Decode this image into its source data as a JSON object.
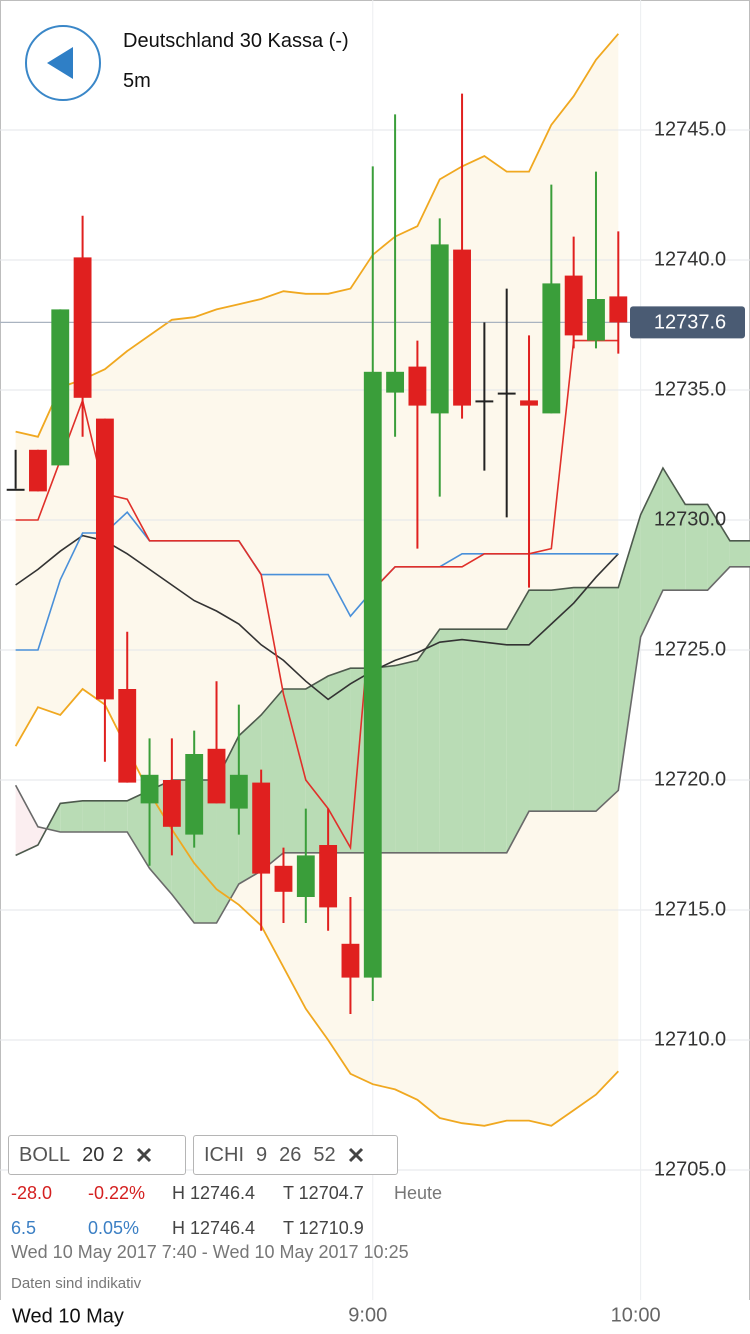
{
  "header": {
    "title": "Deutschland 30 Kassa (-)",
    "interval": "5m"
  },
  "chart_data": {
    "type": "candlestick",
    "x": [
      460,
      465,
      470,
      475,
      480,
      485,
      490,
      495,
      500,
      505,
      510,
      515,
      520,
      525,
      530,
      535,
      540,
      545,
      550,
      555,
      560,
      565,
      570,
      575,
      580,
      585,
      590,
      595
    ],
    "open": [
      12731.2,
      12732.7,
      12732.1,
      12740.1,
      12733.9,
      12723.5,
      12719.1,
      12720.0,
      12717.9,
      12721.2,
      12718.9,
      12719.9,
      12716.7,
      12715.5,
      12717.5,
      12713.7,
      12712.4,
      12734.9,
      12735.9,
      12734.1,
      12740.4,
      12734.6,
      12734.9,
      12734.6,
      12734.1,
      12739.4,
      12736.9,
      12738.6
    ],
    "high": [
      12732.7,
      12732.7,
      12738.1,
      12741.7,
      12733.9,
      12725.7,
      12721.6,
      12721.6,
      12721.9,
      12723.8,
      12722.9,
      12720.4,
      12717.4,
      12718.9,
      12718.9,
      12715.5,
      12743.6,
      12745.6,
      12736.9,
      12741.6,
      12746.4,
      12737.6,
      12738.9,
      12737.1,
      12742.9,
      12740.9,
      12743.4,
      12741.1
    ],
    "low": [
      12731.2,
      12731.1,
      12732.1,
      12733.2,
      12720.7,
      12719.9,
      12716.7,
      12717.1,
      12717.4,
      12719.1,
      12717.9,
      12714.2,
      12714.5,
      12714.5,
      12714.2,
      12711.0,
      12711.5,
      12733.2,
      12728.9,
      12730.9,
      12733.9,
      12731.9,
      12730.1,
      12727.4,
      12734.1,
      12736.6,
      12736.6,
      12736.4
    ],
    "close": [
      12731.2,
      12731.1,
      12738.1,
      12734.7,
      12723.1,
      12719.9,
      12720.2,
      12718.2,
      12721.0,
      12719.1,
      12720.2,
      12716.4,
      12715.7,
      12717.1,
      12715.1,
      12712.4,
      12735.7,
      12735.7,
      12734.4,
      12740.6,
      12734.4,
      12734.6,
      12734.9,
      12734.4,
      12739.1,
      12737.1,
      12738.5,
      12737.6
    ],
    "up_color": "#3a9e3a",
    "down_color": "#e0201f",
    "doji_color": "#222222",
    "bollinger": {
      "color": "#f0a820",
      "fill": "#fdf8ec",
      "upper": [
        12733.4,
        12733.2,
        12735.1,
        12735.4,
        12735.8,
        12736.5,
        12737.1,
        12737.7,
        12737.8,
        12738.1,
        12738.3,
        12738.5,
        12738.8,
        12738.7,
        12738.7,
        12738.9,
        12740.2,
        12740.9,
        12741.3,
        12743.1,
        12743.6,
        12744.0,
        12743.4,
        12743.4,
        12745.2,
        12746.3,
        12747.7,
        12748.7
      ],
      "lower": [
        12721.3,
        12722.8,
        12722.5,
        12723.5,
        12722.9,
        12721.2,
        12719.5,
        12718.1,
        12716.8,
        12715.8,
        12715.2,
        12714.4,
        12712.8,
        12711.2,
        12710.0,
        12708.7,
        12708.3,
        12708.1,
        12707.7,
        12707.0,
        12706.8,
        12706.7,
        12706.9,
        12706.9,
        12706.7,
        12707.3,
        12707.9,
        12708.8
      ]
    },
    "ichimoku": {
      "tenkan": {
        "color": "#e0302a",
        "values": [
          12730.0,
          12730.0,
          12732.3,
          12734.6,
          12731.0,
          12730.8,
          12729.2,
          12729.2,
          12729.2,
          12729.2,
          12729.2,
          12727.9,
          12723.3,
          12720.0,
          12718.9,
          12717.4,
          12727.3,
          12728.2,
          12728.2,
          12728.2,
          12728.2,
          12728.7,
          12728.7,
          12728.7,
          12728.9,
          12736.9,
          12736.9,
          12736.9
        ]
      },
      "kijun": {
        "color": "#4a90d9",
        "values": [
          12725.0,
          12725.0,
          12727.7,
          12729.5,
          12729.5,
          12730.3,
          12729.2,
          12729.2,
          12729.2,
          12729.2,
          12729.2,
          12727.9,
          12727.9,
          12727.9,
          12727.9,
          12726.3,
          12727.3,
          12728.2,
          12728.2,
          12728.2,
          12728.7,
          12728.7,
          12728.7,
          12728.7,
          12728.7,
          12728.7,
          12728.7,
          12728.7
        ]
      },
      "lagging": {
        "color": "#333333",
        "values": [
          12727.5,
          12728.1,
          12728.8,
          12729.4,
          12729.2,
          12728.7,
          12728.1,
          12727.5,
          12726.9,
          12726.5,
          12726.0,
          12725.2,
          12724.6,
          12723.8,
          12723.1,
          12723.7,
          12724.2,
          12724.6,
          12724.9,
          12725.3,
          12725.4,
          12725.3,
          12725.2,
          12725.2,
          12726.0,
          12726.8,
          12727.8,
          12728.7
        ]
      },
      "cloud": {
        "x": [
          460,
          465,
          470,
          475,
          480,
          485,
          490,
          495,
          500,
          505,
          510,
          515,
          520,
          525,
          530,
          535,
          540,
          545,
          550,
          555,
          560,
          565,
          570,
          575,
          580,
          585,
          590,
          595,
          600,
          605,
          610,
          615,
          620,
          625
        ],
        "bull_fill": "#b9dcb5",
        "bear_fill": "#fbeef0",
        "span_a": {
          "color": "#4d5a4d",
          "values": [
            12717.1,
            12717.5,
            12719.1,
            12719.2,
            12719.2,
            12719.2,
            12719.6,
            12720.0,
            12720.0,
            12720.0,
            12721.7,
            12722.5,
            12723.5,
            12723.5,
            12724.0,
            12724.3,
            12724.3,
            12724.4,
            12724.6,
            12725.8,
            12725.8,
            12725.8,
            12725.8,
            12727.3,
            12727.3,
            12727.4,
            12727.4,
            12727.4,
            12730.2,
            12732.0,
            12730.6,
            12730.6,
            12729.2,
            12729.2
          ]
        },
        "span_b": {
          "color": "#6a6a6a",
          "values": [
            12719.8,
            12718.2,
            12718.0,
            12718.0,
            12718.0,
            12718.0,
            12716.6,
            12715.6,
            12714.5,
            12714.5,
            12716.0,
            12716.5,
            12717.2,
            12717.2,
            12717.2,
            12717.2,
            12717.2,
            12717.2,
            12717.2,
            12717.2,
            12717.2,
            12717.2,
            12717.2,
            12718.8,
            12718.8,
            12718.8,
            12718.8,
            12719.6,
            12725.5,
            12727.3,
            12727.3,
            12727.3,
            12728.2,
            12728.2
          ]
        }
      }
    },
    "last_price": 12737.6,
    "last_price_color": "#4a5b73",
    "ylim": [
      12700,
      12750
    ],
    "yticks": [
      {
        "value": 12705,
        "label": "12705.0"
      },
      {
        "value": 12710,
        "label": "12710.0"
      },
      {
        "value": 12715,
        "label": "12715.0"
      },
      {
        "value": 12720,
        "label": "12720.0"
      },
      {
        "value": 12725,
        "label": "12725.0"
      },
      {
        "value": 12730,
        "label": "12730.0"
      },
      {
        "value": 12735,
        "label": "12735.0"
      },
      {
        "value": 12740,
        "label": "12740.0"
      },
      {
        "value": 12745,
        "label": "12745.0"
      }
    ],
    "xlim": [
      456.5,
      624.5
    ],
    "xticks": [
      {
        "value": 540,
        "label": "9:00"
      },
      {
        "value": 600,
        "label": "10:00"
      }
    ],
    "grid": true,
    "date_label": "Wed 10 May"
  },
  "panel": {
    "chips": [
      {
        "name": "BOLL",
        "params": [
          "20",
          "2"
        ]
      },
      {
        "name": "ICHI",
        "params": [
          "9",
          "26",
          "52"
        ]
      }
    ],
    "rows": [
      [
        "-28.0",
        "-0.22%",
        "H 12746.4",
        "T 12704.7",
        "Heute"
      ],
      [
        "6.5",
        "0.05%",
        "H 12746.4",
        "T 12710.9"
      ]
    ],
    "range": "Wed 10 May 2017 7:40 - Wed 10 May 2017 10:25",
    "note": "Daten sind indikativ"
  }
}
